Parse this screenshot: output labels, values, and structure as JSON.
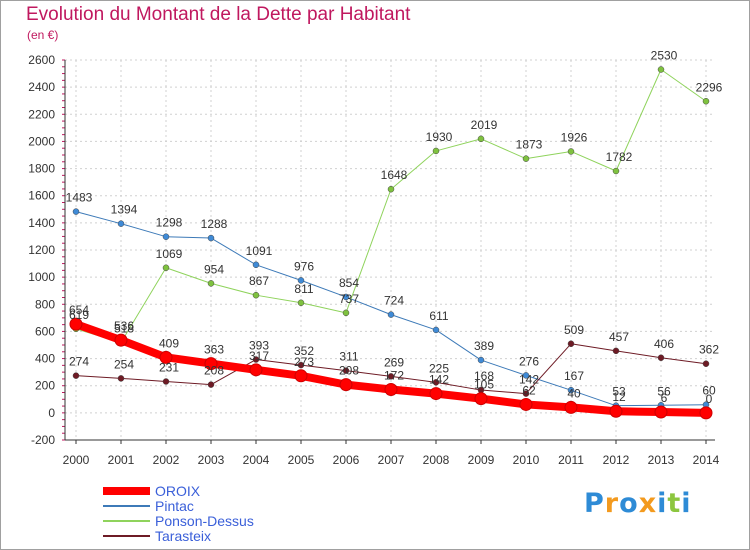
{
  "chart_data": {
    "type": "line",
    "title": "Evolution du Montant de la Dette par Habitant",
    "subtitle": "(en €)",
    "x": [
      "2000",
      "2001",
      "2002",
      "2003",
      "2004",
      "2005",
      "2006",
      "2007",
      "2008",
      "2009",
      "2010",
      "2011",
      "2012",
      "2013",
      "2014"
    ],
    "ylim": [
      -200,
      2600
    ],
    "yticks": [
      -200,
      0,
      200,
      400,
      600,
      800,
      1000,
      1200,
      1400,
      1600,
      1800,
      2000,
      2200,
      2400,
      2600
    ],
    "grid": true,
    "legend_position": "bottom-left",
    "series": [
      {
        "name": "Pintac",
        "color": "#3d7ab8",
        "point_color": "#3f8ad6",
        "width": 1,
        "values": [
          1483,
          1394,
          1298,
          1288,
          1091,
          976,
          854,
          724,
          611,
          389,
          276,
          167,
          53,
          56,
          60
        ]
      },
      {
        "name": "Ponson-Dessus",
        "color": "#8fd35c",
        "point_color": "#7fc23f",
        "width": 1,
        "values": [
          619,
          518,
          1069,
          954,
          867,
          811,
          737,
          1648,
          1930,
          2019,
          1873,
          1926,
          1782,
          2530,
          2296
        ]
      },
      {
        "name": "Tarasteix",
        "color": "#6e1b25",
        "point_color": "#6e1b25",
        "width": 1,
        "values": [
          274,
          254,
          231,
          208,
          393,
          352,
          311,
          269,
          225,
          168,
          142,
          509,
          457,
          406,
          362
        ]
      },
      {
        "name": "OROIX",
        "color": "#ff0000",
        "point_color": "#ff0000",
        "width": 8,
        "values": [
          654,
          536,
          409,
          363,
          317,
          273,
          208,
          172,
          142,
          105,
          62,
          40,
          12,
          6,
          0
        ]
      }
    ],
    "legend": [
      "OROIX",
      "Pintac",
      "Ponson-Dessus",
      "Tarasteix"
    ]
  },
  "logo": {
    "text": "Proxiti",
    "letters": [
      "P",
      "r",
      "o",
      "x",
      "i",
      "t",
      "i"
    ],
    "colors": [
      "#2e8bd6",
      "#f39a1e",
      "#2e8bd6",
      "#f39a1e",
      "#2e8bd6",
      "#8cc63f",
      "#2e8bd6"
    ]
  }
}
